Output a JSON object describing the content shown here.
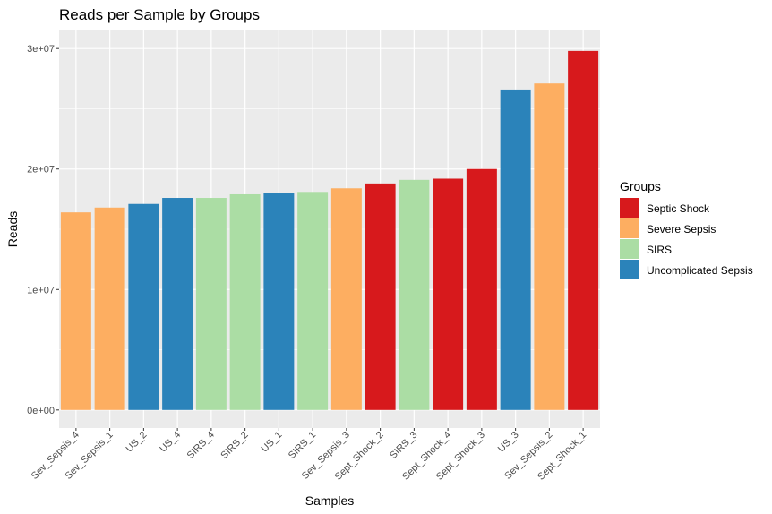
{
  "chart_data": {
    "type": "bar",
    "title": "Reads per Sample by Groups",
    "xlabel": "Samples",
    "ylabel": "Reads",
    "ylim": [
      -1500000,
      31500000
    ],
    "yticks": [
      {
        "value": 0,
        "label": "0e+00"
      },
      {
        "value": 10000000,
        "label": "1e+07"
      },
      {
        "value": 20000000,
        "label": "2e+07"
      },
      {
        "value": 30000000,
        "label": "3e+07"
      }
    ],
    "grid": true,
    "legend": {
      "title": "Groups",
      "position": "right",
      "entries": [
        {
          "name": "Septic Shock",
          "color": "#d7191c"
        },
        {
          "name": "Severe Sepsis",
          "color": "#fdae61"
        },
        {
          "name": "SIRS",
          "color": "#abdda4"
        },
        {
          "name": "Uncomplicated Sepsis",
          "color": "#2b83ba"
        }
      ]
    },
    "categories": [
      "Sev_Sepsis_4",
      "Sev_Sepsis_1",
      "US_2",
      "US_4",
      "SIRS_4",
      "SIRS_2",
      "US_1",
      "SIRS_1",
      "Sev_Sepsis_3",
      "Sept_Shock_2",
      "SIRS_3",
      "Sept_Shock_4",
      "Sept_Shock_3",
      "US_3",
      "Sev_Sepsis_2",
      "Sept_Shock_1"
    ],
    "values": [
      16400000,
      16800000,
      17100000,
      17600000,
      17600000,
      17900000,
      18000000,
      18100000,
      18400000,
      18800000,
      19100000,
      19200000,
      20000000,
      26600000,
      27100000,
      29800000
    ],
    "groups": [
      "Severe Sepsis",
      "Severe Sepsis",
      "Uncomplicated Sepsis",
      "Uncomplicated Sepsis",
      "SIRS",
      "SIRS",
      "Uncomplicated Sepsis",
      "SIRS",
      "Severe Sepsis",
      "Septic Shock",
      "SIRS",
      "Septic Shock",
      "Septic Shock",
      "Uncomplicated Sepsis",
      "Severe Sepsis",
      "Septic Shock"
    ]
  }
}
